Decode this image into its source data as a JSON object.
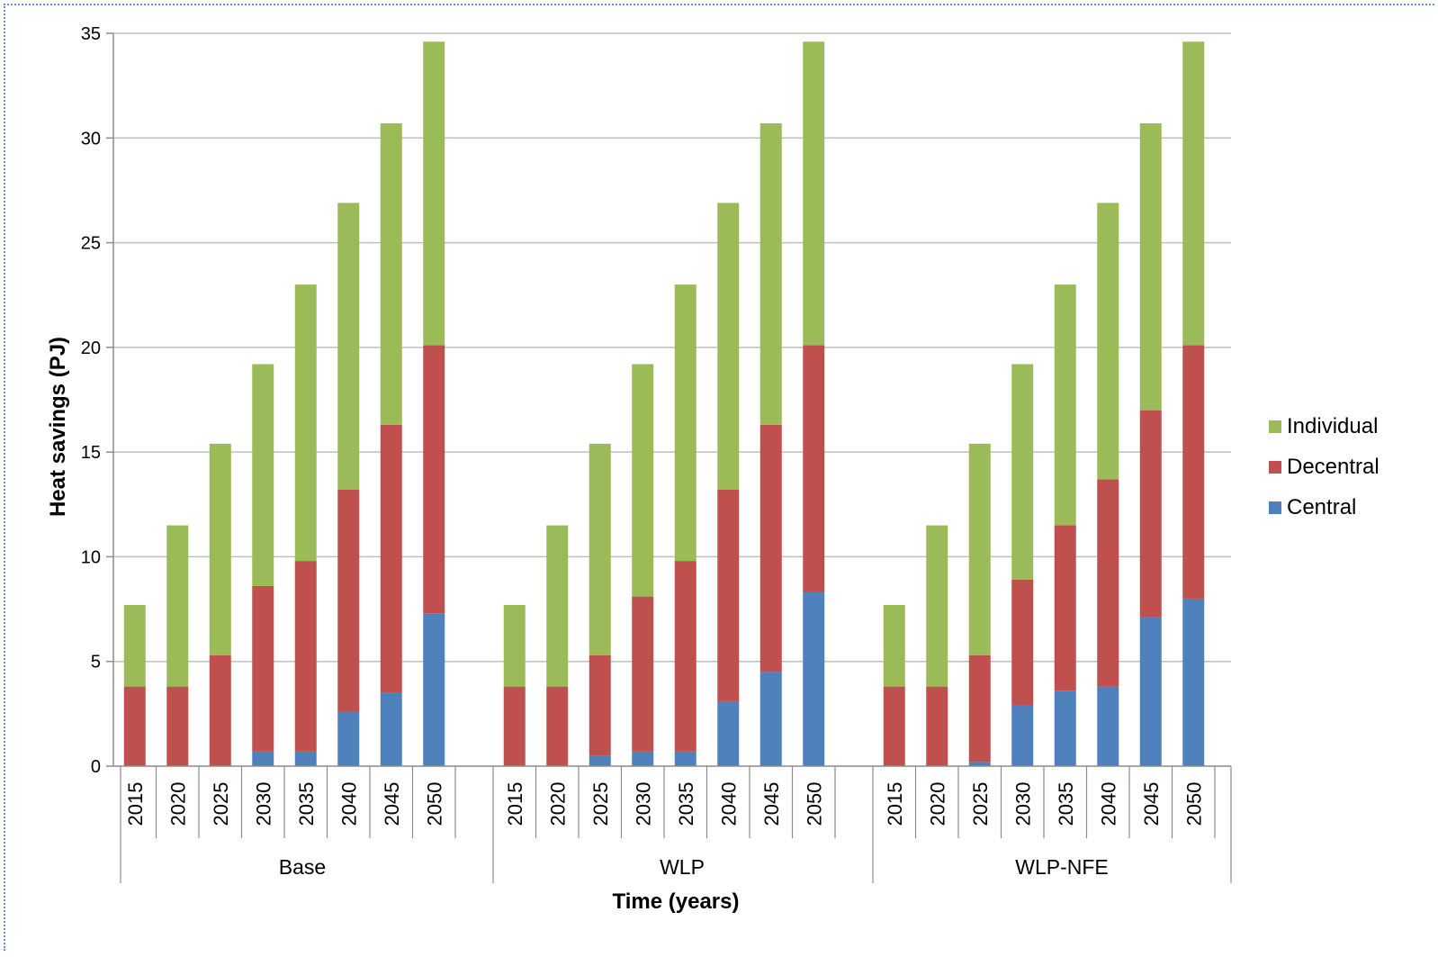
{
  "chart_data": {
    "type": "bar",
    "stacked": true,
    "xlabel": "Time (years)",
    "ylabel": "Heat savings (PJ)",
    "ylim": [
      0,
      35
    ],
    "yticks": [
      0,
      5,
      10,
      15,
      20,
      25,
      30,
      35
    ],
    "grid": true,
    "legend_position": "right",
    "groups": [
      {
        "name": "Base",
        "categories": [
          "2015",
          "2020",
          "2025",
          "2030",
          "2035",
          "2040",
          "2045",
          "2050"
        ]
      },
      {
        "name": "WLP",
        "categories": [
          "2015",
          "2020",
          "2025",
          "2030",
          "2035",
          "2040",
          "2045",
          "2050"
        ]
      },
      {
        "name": "WLP-NFE",
        "categories": [
          "2015",
          "2020",
          "2025",
          "2030",
          "2035",
          "2040",
          "2045",
          "2050"
        ]
      }
    ],
    "series": [
      {
        "name": "Central",
        "color": "#4f81bd",
        "values": [
          [
            0,
            0,
            0,
            0.7,
            0.7,
            2.6,
            3.5,
            7.3
          ],
          [
            0,
            0,
            0.5,
            0.7,
            0.7,
            3.1,
            4.5,
            8.3
          ],
          [
            0,
            0,
            0.2,
            2.9,
            3.6,
            3.8,
            7.1,
            8.0
          ]
        ]
      },
      {
        "name": "Decentral",
        "color": "#c0504d",
        "values": [
          [
            3.8,
            3.8,
            5.3,
            7.9,
            9.1,
            10.6,
            12.8,
            12.8
          ],
          [
            3.8,
            3.8,
            4.8,
            7.4,
            9.1,
            10.1,
            11.8,
            11.8
          ],
          [
            3.8,
            3.8,
            5.1,
            6.0,
            7.9,
            9.9,
            9.9,
            12.1
          ]
        ]
      },
      {
        "name": "Individual",
        "color": "#9bbb59",
        "values": [
          [
            3.9,
            7.7,
            10.1,
            10.6,
            13.2,
            13.7,
            14.4,
            14.5
          ],
          [
            3.9,
            7.7,
            10.1,
            11.1,
            13.2,
            13.7,
            14.4,
            14.5
          ],
          [
            3.9,
            7.7,
            10.1,
            10.3,
            11.5,
            13.2,
            13.7,
            14.5
          ]
        ]
      }
    ]
  }
}
